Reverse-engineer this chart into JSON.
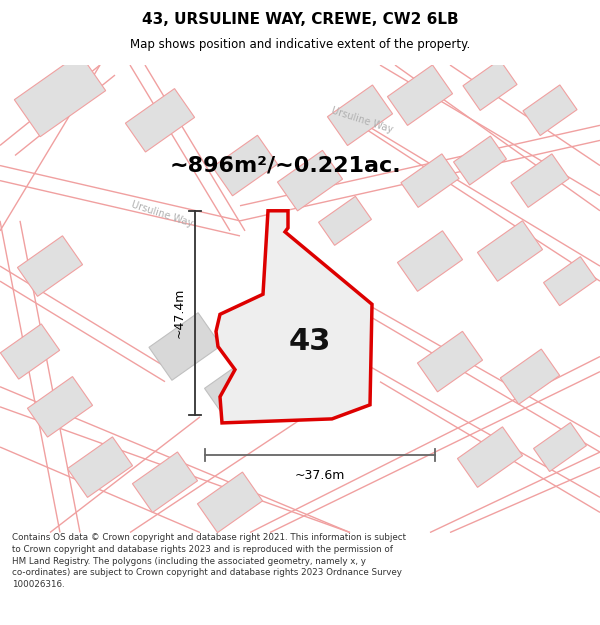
{
  "title": "43, URSULINE WAY, CREWE, CW2 6LB",
  "subtitle": "Map shows position and indicative extent of the property.",
  "area_text": "~896m²/~0.221ac.",
  "label_number": "43",
  "width_label": "~37.6m",
  "height_label": "~47.4m",
  "footer_text": "Contains OS data © Crown copyright and database right 2021. This information is subject to Crown copyright and database rights 2023 and is reproduced with the permission of HM Land Registry. The polygons (including the associated geometry, namely x, y co-ordinates) are subject to Crown copyright and database rights 2023 Ordnance Survey 100026316.",
  "bg_color": "#ffffff",
  "map_bg": "#ffffff",
  "plot_fill": "#eeeeee",
  "plot_edge": "#dd0000",
  "road_color": "#f0a0a0",
  "road_outline": "#e08080",
  "building_fill": "#e0e0e0",
  "building_edge": "#c8b8b8",
  "title_color": "#000000",
  "footer_color": "#333333",
  "dim_color": "#333333",
  "road_label_color": "#b0b0b0",
  "area_text_color": "#000000"
}
